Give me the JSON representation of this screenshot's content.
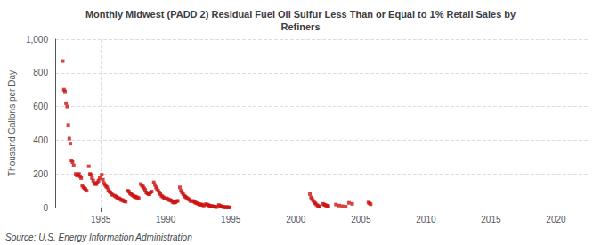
{
  "chart_data": {
    "type": "scatter",
    "title": "Monthly Midwest (PADD 2) Residual Fuel Oil Sulfur Less Than or Equal to 1% Retail Sales by\nRefiners",
    "ylabel": "Thousand Gallons per Day",
    "annotations": [
      "Source: U.S. Energy Information Administration"
    ],
    "color": "#cc1111",
    "marker": "square",
    "grid": true,
    "xlim": [
      1981.5,
      2022.5
    ],
    "xticks": [
      1985,
      1990,
      1995,
      2000,
      2005,
      2010,
      2015,
      2020
    ],
    "ylim": [
      0,
      1000
    ],
    "yticks": [
      0,
      200,
      400,
      600,
      800,
      {
        "value": 1000,
        "label": "1,000"
      }
    ],
    "x": [
      1982.08,
      1982.17,
      1982.25,
      1982.33,
      1982.42,
      1982.5,
      1982.58,
      1982.67,
      1982.75,
      1982.83,
      1982.92,
      1983.08,
      1983.17,
      1983.25,
      1983.33,
      1983.42,
      1983.5,
      1983.58,
      1983.67,
      1983.75,
      1983.83,
      1983.92,
      1984.08,
      1984.17,
      1984.25,
      1984.33,
      1984.42,
      1984.5,
      1984.58,
      1984.67,
      1984.75,
      1984.83,
      1984.92,
      1985.08,
      1985.17,
      1985.25,
      1985.33,
      1985.42,
      1985.5,
      1985.58,
      1985.67,
      1985.75,
      1985.83,
      1985.92,
      1986.08,
      1986.17,
      1986.25,
      1986.33,
      1986.42,
      1986.5,
      1986.58,
      1986.67,
      1986.75,
      1986.83,
      1986.92,
      1987.08,
      1987.17,
      1987.25,
      1987.33,
      1987.42,
      1987.5,
      1987.58,
      1987.67,
      1987.75,
      1987.83,
      1987.92,
      1988.08,
      1988.17,
      1988.25,
      1988.33,
      1988.42,
      1988.5,
      1988.58,
      1988.67,
      1988.75,
      1988.83,
      1988.92,
      1989.08,
      1989.17,
      1989.25,
      1989.33,
      1989.42,
      1989.5,
      1989.58,
      1989.67,
      1989.75,
      1989.83,
      1989.92,
      1990.08,
      1990.17,
      1990.25,
      1990.33,
      1990.42,
      1990.5,
      1990.58,
      1990.67,
      1990.75,
      1990.83,
      1990.92,
      1991.08,
      1991.17,
      1991.25,
      1991.33,
      1991.42,
      1991.5,
      1991.58,
      1991.67,
      1991.75,
      1991.83,
      1991.92,
      1992.08,
      1992.17,
      1992.25,
      1992.33,
      1992.42,
      1992.5,
      1992.58,
      1992.67,
      1992.75,
      1992.83,
      1992.92,
      1993.08,
      1993.17,
      1993.25,
      1993.33,
      1993.42,
      1993.5,
      1993.58,
      1993.67,
      1993.75,
      1993.83,
      1993.92,
      1994.08,
      1994.17,
      1994.25,
      1994.33,
      1994.42,
      1994.5,
      1994.58,
      1994.67,
      1994.75,
      1994.83,
      1994.92,
      2001.08,
      2001.17,
      2001.25,
      2001.33,
      2001.42,
      2001.5,
      2001.58,
      2001.67,
      2001.75,
      2001.83,
      2002.08,
      2002.17,
      2002.25,
      2002.33,
      2002.42,
      2002.5,
      2003.08,
      2003.33,
      2003.58,
      2003.83,
      2004.08,
      2004.33,
      2005.58,
      2005.67,
      2005.75
    ],
    "values": [
      870,
      700,
      690,
      620,
      600,
      490,
      410,
      380,
      280,
      270,
      250,
      200,
      190,
      195,
      200,
      185,
      175,
      130,
      120,
      115,
      110,
      100,
      245,
      200,
      195,
      175,
      160,
      145,
      140,
      140,
      150,
      160,
      175,
      195,
      165,
      145,
      135,
      125,
      120,
      105,
      95,
      90,
      80,
      75,
      70,
      65,
      60,
      55,
      55,
      50,
      45,
      45,
      40,
      38,
      35,
      100,
      95,
      85,
      80,
      75,
      70,
      65,
      65,
      60,
      60,
      55,
      140,
      130,
      125,
      115,
      105,
      90,
      85,
      80,
      80,
      90,
      95,
      150,
      135,
      120,
      110,
      100,
      90,
      80,
      70,
      65,
      60,
      55,
      55,
      50,
      45,
      45,
      42,
      35,
      30,
      30,
      32,
      38,
      40,
      120,
      100,
      90,
      80,
      70,
      65,
      60,
      55,
      50,
      45,
      38,
      40,
      35,
      30,
      28,
      25,
      22,
      18,
      18,
      18,
      15,
      12,
      20,
      18,
      15,
      12,
      10,
      8,
      8,
      6,
      5,
      4,
      3,
      15,
      10,
      8,
      5,
      3,
      2,
      2,
      2,
      2,
      1,
      1,
      80,
      60,
      50,
      40,
      30,
      25,
      18,
      12,
      8,
      5,
      22,
      18,
      15,
      12,
      10,
      8,
      18,
      12,
      8,
      5,
      28,
      22,
      30,
      25,
      20
    ]
  }
}
